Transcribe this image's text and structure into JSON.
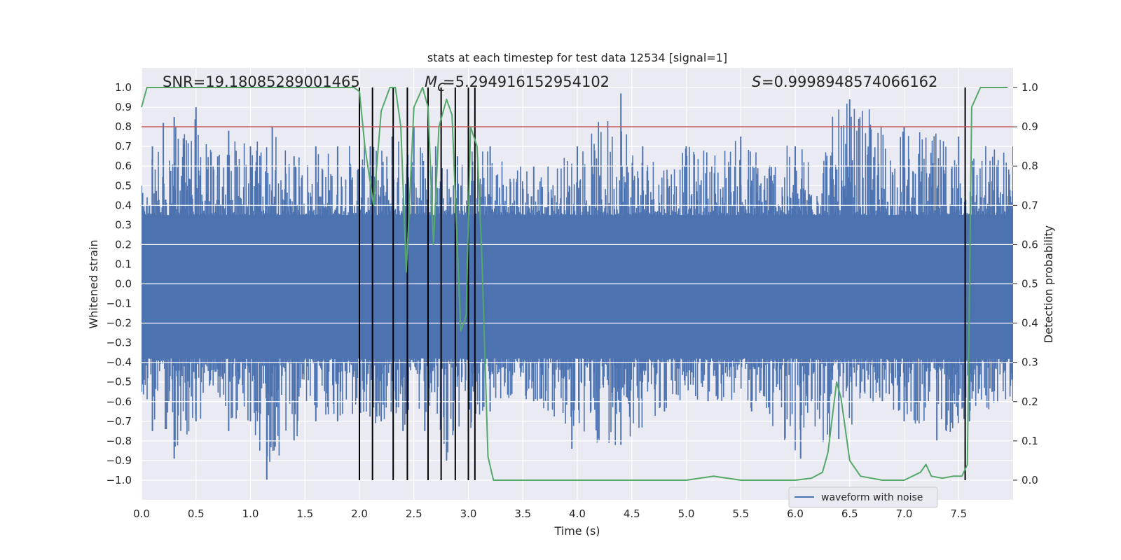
{
  "chart_data": {
    "type": "line",
    "title": "stats at each timestep for test data 12534 [signal=1]",
    "xlabel": "Time (s)",
    "ylabel": "Whitened strain",
    "y2label": "Detection probability",
    "xlim": [
      0.0,
      8.0
    ],
    "ylim": [
      -1.1,
      1.1
    ],
    "y2lim": [
      -0.05,
      1.05
    ],
    "grid": true,
    "x_ticks": [
      "0.0",
      "0.5",
      "1.0",
      "1.5",
      "2.0",
      "2.5",
      "3.0",
      "3.5",
      "4.0",
      "4.5",
      "5.0",
      "5.5",
      "6.0",
      "6.5",
      "7.0",
      "7.5"
    ],
    "y_ticks": [
      "1.0",
      "0.9",
      "0.8",
      "0.7",
      "0.6",
      "0.5",
      "0.4",
      "0.3",
      "0.2",
      "0.1",
      "0.0",
      "−0.1",
      "−0.2",
      "−0.3",
      "−0.4",
      "−0.5",
      "−0.6",
      "−0.7",
      "−0.8",
      "−0.9",
      "−1.0"
    ],
    "y2_ticks": [
      "1.0",
      "0.9",
      "0.8",
      "0.7",
      "0.6",
      "0.5",
      "0.4",
      "0.3",
      "0.2",
      "0.1",
      "0.0"
    ],
    "annotations": {
      "snr": "SNR=19.18085289001465",
      "mc": "=5.294916152954102",
      "s": "=0.9998948574066162"
    },
    "legend": {
      "label": "waveform with noise",
      "placement": "lower-right"
    },
    "colors": {
      "waveform": "#4c72b0",
      "probability": "#55a868",
      "threshold": "#c44e52",
      "markers": "#000000",
      "axes_bg": "#eaeaf2",
      "grid": "#ffffff"
    },
    "waveform": {
      "name": "waveform with noise",
      "envelope_upper": [
        [
          0.0,
          0.5
        ],
        [
          0.1,
          0.7
        ],
        [
          0.2,
          0.82
        ],
        [
          0.3,
          0.85
        ],
        [
          0.5,
          0.9
        ],
        [
          0.7,
          0.65
        ],
        [
          0.8,
          0.78
        ],
        [
          1.0,
          0.7
        ],
        [
          1.2,
          0.8
        ],
        [
          1.4,
          0.65
        ],
        [
          1.6,
          0.7
        ],
        [
          1.8,
          0.7
        ],
        [
          2.0,
          0.75
        ],
        [
          2.1,
          0.7
        ],
        [
          2.3,
          0.75
        ],
        [
          2.5,
          0.8
        ],
        [
          2.7,
          0.7
        ],
        [
          2.9,
          0.65
        ],
        [
          3.0,
          0.72
        ],
        [
          3.2,
          0.7
        ],
        [
          3.6,
          0.6
        ],
        [
          4.0,
          0.7
        ],
        [
          4.4,
          0.97
        ],
        [
          4.6,
          0.7
        ],
        [
          5.0,
          0.7
        ],
        [
          5.5,
          0.75
        ],
        [
          6.0,
          0.7
        ],
        [
          6.5,
          0.94
        ],
        [
          7.0,
          0.8
        ],
        [
          7.5,
          0.75
        ],
        [
          8.0,
          0.7
        ]
      ],
      "envelope_lower": [
        [
          0.0,
          -0.55
        ],
        [
          0.1,
          -0.75
        ],
        [
          0.3,
          -0.89
        ],
        [
          0.5,
          -0.7
        ],
        [
          0.8,
          -0.75
        ],
        [
          1.0,
          -0.7
        ],
        [
          1.15,
          -1.0
        ],
        [
          1.4,
          -0.8
        ],
        [
          1.6,
          -0.7
        ],
        [
          1.8,
          -0.7
        ],
        [
          2.0,
          -0.78
        ],
        [
          2.2,
          -0.7
        ],
        [
          2.4,
          -0.75
        ],
        [
          2.6,
          -0.75
        ],
        [
          2.8,
          -0.9
        ],
        [
          3.0,
          -0.75
        ],
        [
          3.2,
          -0.65
        ],
        [
          3.6,
          -0.6
        ],
        [
          3.95,
          -0.84
        ],
        [
          4.4,
          -0.82
        ],
        [
          4.8,
          -0.65
        ],
        [
          5.2,
          -0.6
        ],
        [
          5.6,
          -0.65
        ],
        [
          6.05,
          -0.89
        ],
        [
          6.4,
          -0.79
        ],
        [
          6.8,
          -0.6
        ],
        [
          7.0,
          -0.7
        ],
        [
          7.3,
          -0.8
        ],
        [
          7.6,
          -0.7
        ],
        [
          8.0,
          -0.6
        ]
      ]
    },
    "detection_probability": {
      "x": [
        0.0,
        0.05,
        0.15,
        0.3,
        0.5,
        1.0,
        1.5,
        1.95,
        2.0,
        2.05,
        2.13,
        2.2,
        2.28,
        2.33,
        2.38,
        2.43,
        2.5,
        2.58,
        2.63,
        2.68,
        2.73,
        2.8,
        2.85,
        2.93,
        2.98,
        3.02,
        3.08,
        3.12,
        3.18,
        3.23,
        3.3,
        3.4,
        3.6,
        4.0,
        4.5,
        5.0,
        5.25,
        5.5,
        5.8,
        6.0,
        6.15,
        6.25,
        6.3,
        6.38,
        6.42,
        6.5,
        6.6,
        6.8,
        7.0,
        7.15,
        7.2,
        7.25,
        7.35,
        7.45,
        7.53,
        7.58,
        7.62,
        7.7,
        7.8,
        7.95
      ],
      "y": [
        0.95,
        1.0,
        1.0,
        1.0,
        1.0,
        1.0,
        1.0,
        1.0,
        0.99,
        0.85,
        0.7,
        0.94,
        1.0,
        1.0,
        0.9,
        0.53,
        0.95,
        1.0,
        0.95,
        0.6,
        0.9,
        0.97,
        0.93,
        0.38,
        0.42,
        0.9,
        0.85,
        0.6,
        0.06,
        0.0,
        0.0,
        0.0,
        0.0,
        0.0,
        0.0,
        0.0,
        0.01,
        0.0,
        0.0,
        0.0,
        0.005,
        0.02,
        0.07,
        0.25,
        0.21,
        0.05,
        0.01,
        0.0,
        0.0,
        0.02,
        0.04,
        0.01,
        0.005,
        0.01,
        0.01,
        0.04,
        0.95,
        1.0,
        1.0,
        1.0
      ]
    },
    "threshold": {
      "y2": 0.9
    },
    "event_markers_x": [
      2.0,
      2.12,
      2.31,
      2.44,
      2.63,
      2.75,
      2.88,
      3.0,
      3.06,
      7.56
    ]
  }
}
